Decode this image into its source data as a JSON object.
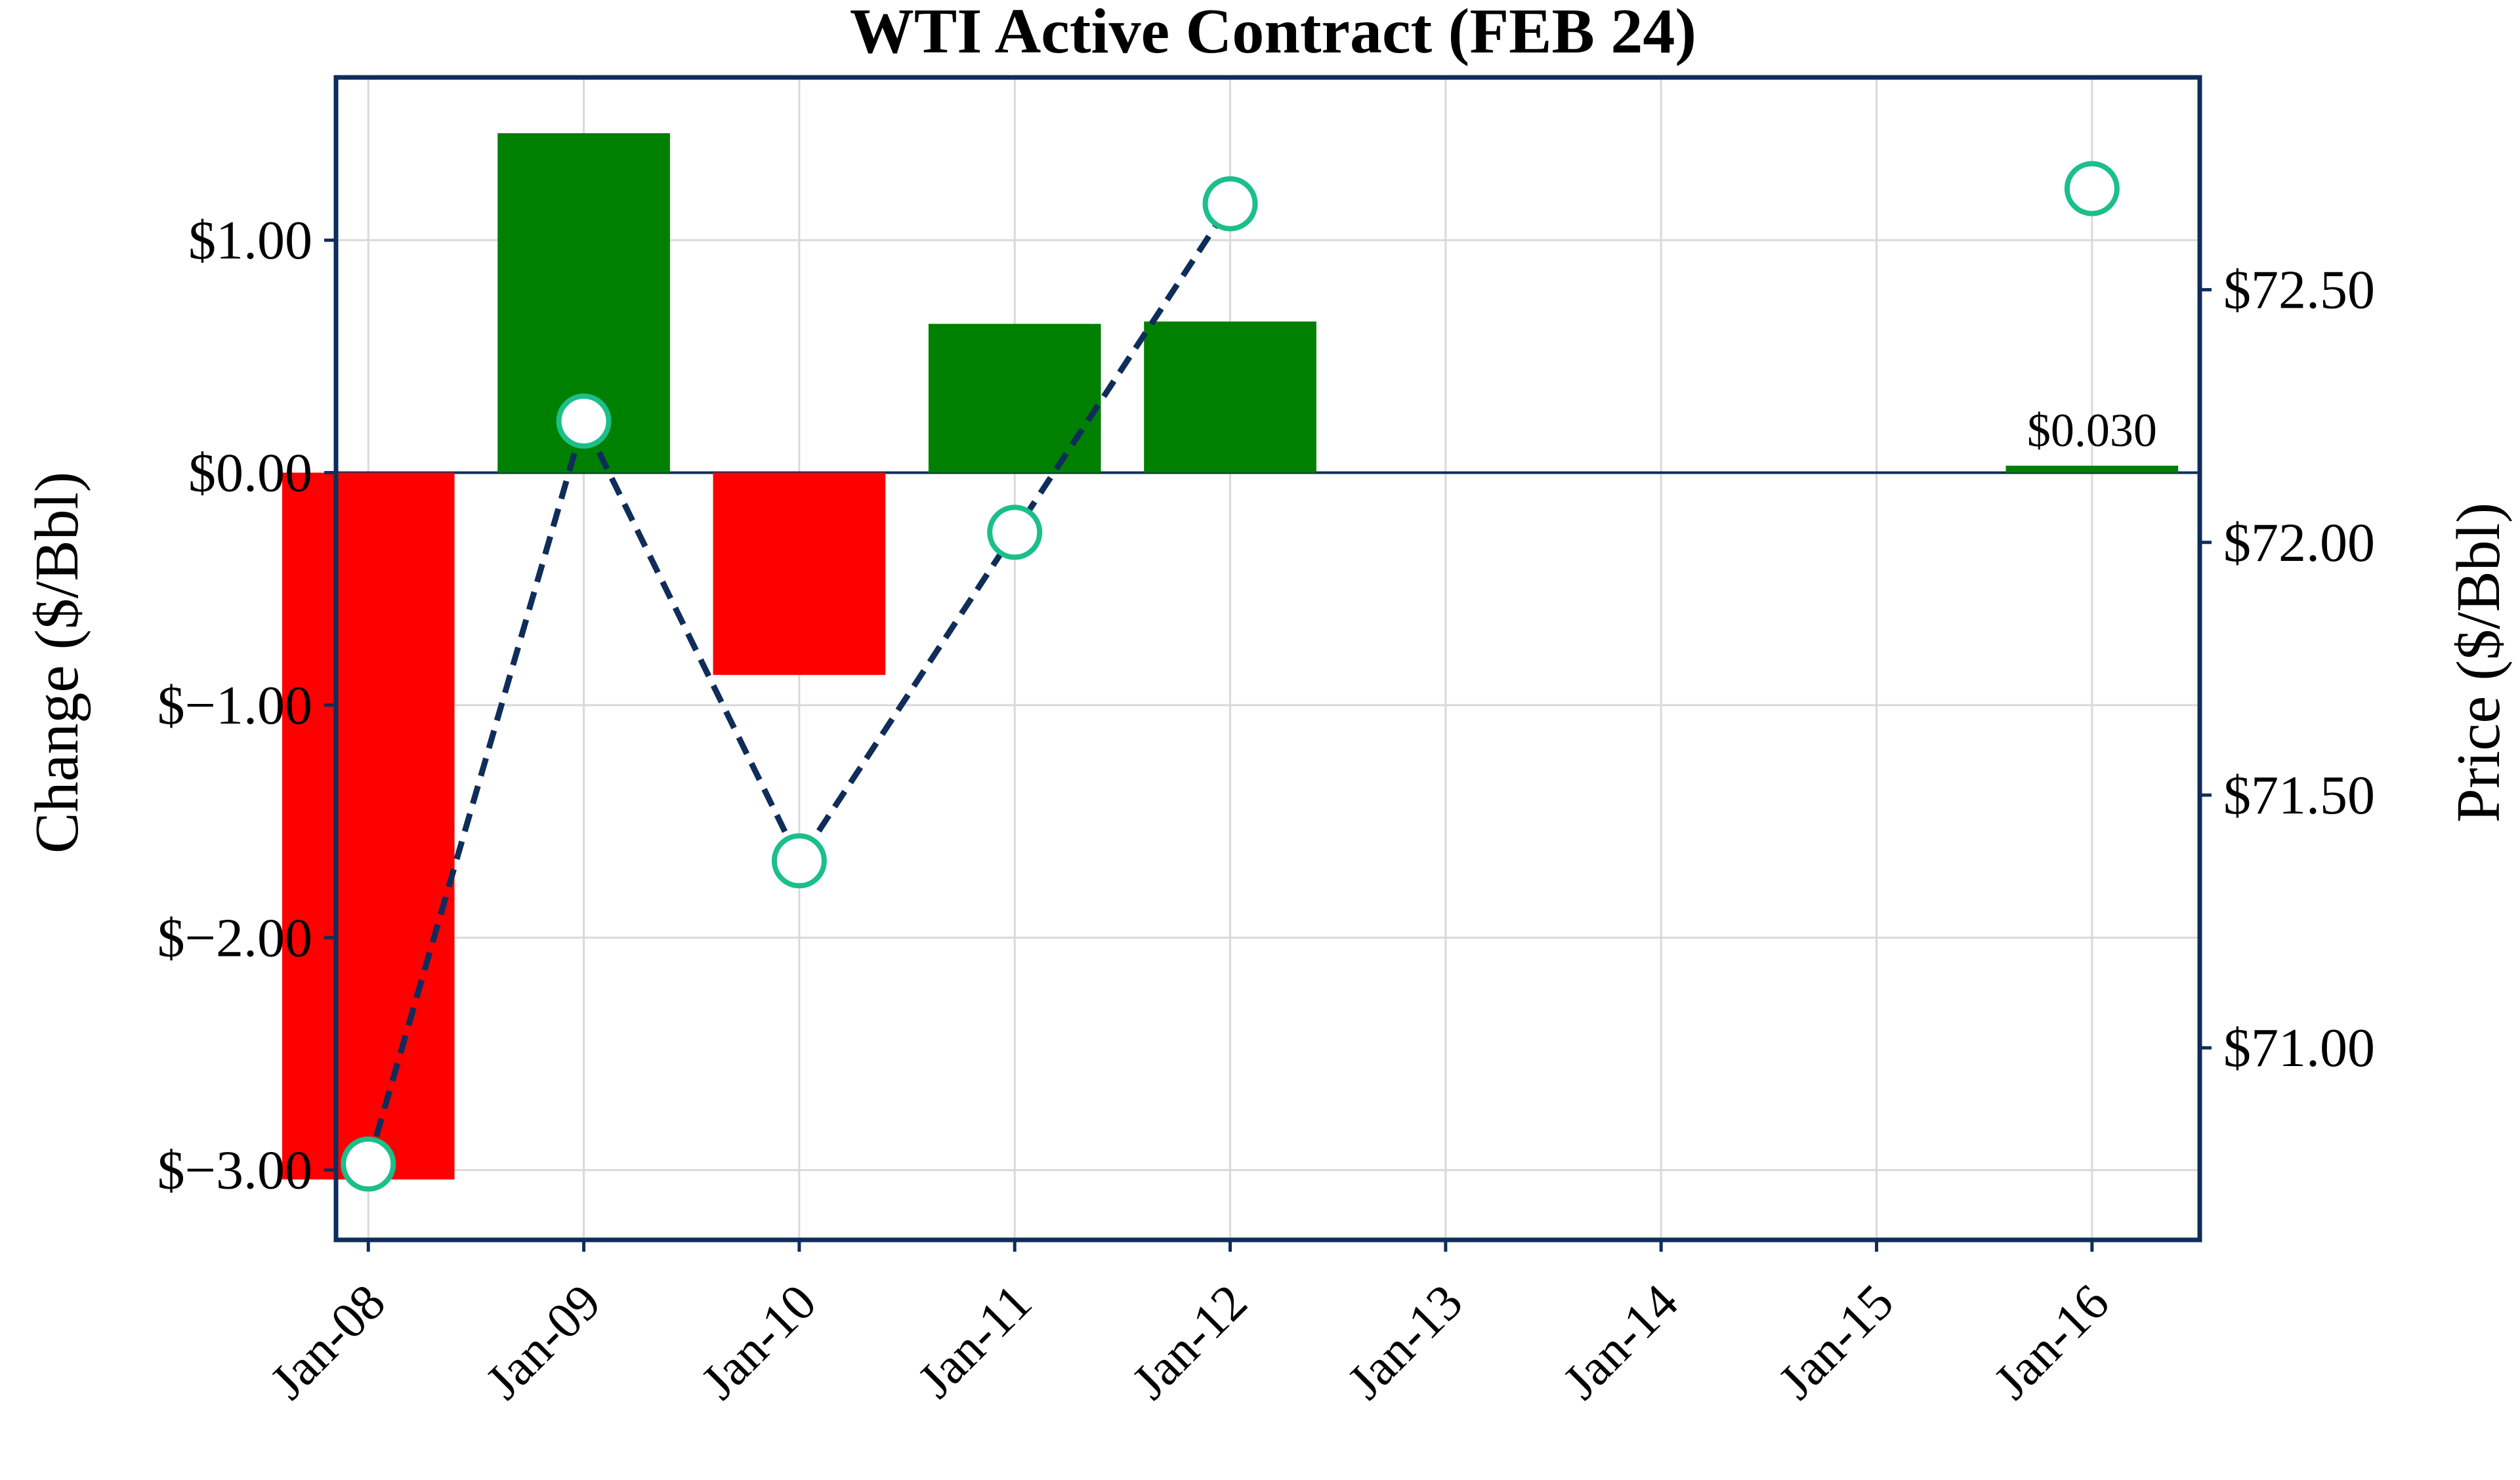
{
  "chart_data": {
    "type": "bar",
    "title": "WTI Active Contract (FEB 24)",
    "categories": [
      "Jan-08",
      "Jan-09",
      "Jan-10",
      "Jan-11",
      "Jan-12",
      "Jan-13",
      "Jan-14",
      "Jan-15",
      "Jan-16"
    ],
    "left_axis": {
      "label": "Change ($/Bbl)",
      "ylim": [
        -3.3,
        1.7
      ],
      "ticks": [
        1,
        0,
        -1,
        -2,
        -3
      ],
      "tick_labels": [
        "$1.00",
        "$0.00",
        "$−1.00",
        "$−2.00",
        "$−3.00"
      ]
    },
    "right_axis": {
      "label": "Price ($/Bbl)",
      "ylim": [
        70.62,
        72.92
      ],
      "ticks": [
        72.5,
        72.0,
        71.5,
        71.0
      ],
      "tick_labels": [
        "$72.50",
        "$72.00",
        "$71.50",
        "$71.00"
      ]
    },
    "series": [
      {
        "kind": "bar",
        "axis": "left",
        "values": [
          -3.04,
          1.46,
          -0.87,
          0.64,
          0.65,
          null,
          null,
          null,
          0.03
        ],
        "positive_color": "#008000",
        "negative_color": "#ff0000"
      },
      {
        "kind": "line",
        "axis": "right",
        "values": [
          70.77,
          72.24,
          71.37,
          72.02,
          72.67,
          null,
          null,
          null,
          72.7
        ],
        "line_color": "#0f2d5a",
        "marker_edge_color": "#1bbf8a",
        "marker_face_color": "#ffffff",
        "line_style": "dashed"
      }
    ],
    "annotations": [
      {
        "category": "Jan-16",
        "text": "$0.030"
      }
    ],
    "grid": true,
    "zero_line_color": "#0f2d5a"
  }
}
